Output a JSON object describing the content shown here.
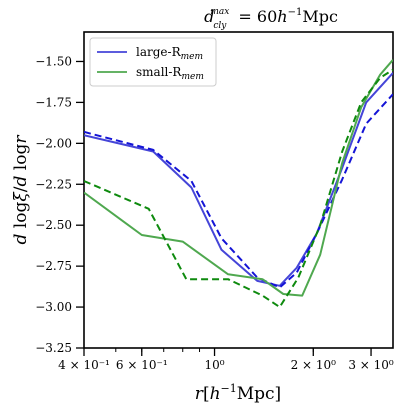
{
  "chart_data": {
    "type": "line",
    "title": "d_cly^max = 60h^-1 Mpc",
    "xlabel": "r[h^-1 Mpc]",
    "ylabel": "d log ξ / d log r",
    "xscale": "log",
    "xlim": [
      0.4,
      3.5
    ],
    "ylim": [
      -3.25,
      -1.32
    ],
    "grid": false,
    "legend_position": "top-left",
    "x_ticks": [
      {
        "value": 0.4,
        "label": "4 × 10⁻¹"
      },
      {
        "value": 0.6,
        "label": "6 × 10⁻¹"
      },
      {
        "value": 1.0,
        "label": "10⁰"
      },
      {
        "value": 2.0,
        "label": "2 × 10⁰"
      },
      {
        "value": 3.0,
        "label": "3 × 10⁰"
      }
    ],
    "y_ticks": [
      -3.25,
      -3.0,
      -2.75,
      -2.5,
      -2.25,
      -2.0,
      -1.75,
      -1.5
    ],
    "y_tick_labels": [
      "−3.25",
      "−3.00",
      "−2.75",
      "−2.50",
      "−2.25",
      "−2.00",
      "−1.75",
      "−1.50"
    ],
    "series": [
      {
        "name": "large-R_mem",
        "legend_label": "large-R",
        "legend_sub": "mem",
        "color": "#4545d8",
        "style": "solid",
        "in_legend": true,
        "x": [
          0.4,
          0.65,
          0.85,
          1.05,
          1.35,
          1.58,
          1.78,
          2.05,
          2.45,
          2.9,
          3.5
        ],
        "y": [
          -1.95,
          -2.05,
          -2.27,
          -2.65,
          -2.84,
          -2.87,
          -2.76,
          -2.55,
          -2.15,
          -1.75,
          -1.57
        ]
      },
      {
        "name": "large-R_mem (dashed)",
        "color": "#1414d6",
        "style": "dashed",
        "in_legend": false,
        "x": [
          0.4,
          0.65,
          0.85,
          1.05,
          1.35,
          1.58,
          1.78,
          2.05,
          2.45,
          2.9,
          3.5
        ],
        "y": [
          -1.93,
          -2.04,
          -2.23,
          -2.58,
          -2.82,
          -2.88,
          -2.79,
          -2.55,
          -2.22,
          -1.88,
          -1.7
        ]
      },
      {
        "name": "small-R_mem",
        "legend_label": "small-R",
        "legend_sub": "mem",
        "color": "#4fa84f",
        "style": "solid",
        "in_legend": true,
        "x": [
          0.4,
          0.6,
          0.8,
          1.1,
          1.4,
          1.62,
          1.85,
          2.1,
          2.45,
          2.8,
          3.2,
          3.5
        ],
        "y": [
          -2.3,
          -2.56,
          -2.6,
          -2.8,
          -2.83,
          -2.92,
          -2.93,
          -2.68,
          -2.12,
          -1.78,
          -1.58,
          -1.49
        ]
      },
      {
        "name": "small-R_mem (dashed)",
        "color": "#0e8a0e",
        "style": "dashed",
        "in_legend": false,
        "x": [
          0.4,
          0.63,
          0.82,
          1.1,
          1.4,
          1.58,
          1.8,
          2.1,
          2.45,
          2.8,
          3.2,
          3.5
        ],
        "y": [
          -2.23,
          -2.4,
          -2.83,
          -2.83,
          -2.93,
          -3.0,
          -2.82,
          -2.5,
          -2.05,
          -1.75,
          -1.6,
          -1.55
        ]
      }
    ]
  }
}
